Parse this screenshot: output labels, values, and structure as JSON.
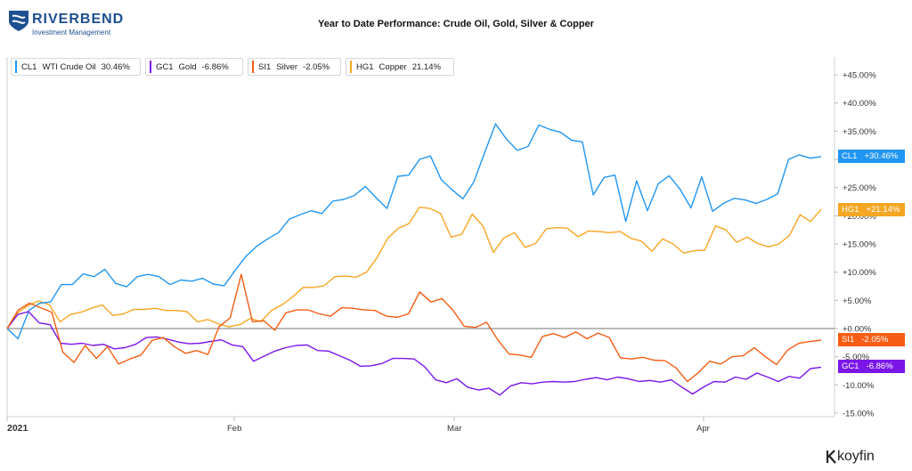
{
  "header": {
    "brand": "RIVERBEND",
    "brand_sub": "Investment Management",
    "title": "Year to Date Performance: Crude Oil, Gold, Silver & Copper"
  },
  "watermark": "koyfin",
  "colors": {
    "CL1": "#2196f3",
    "GC1": "#7b16e8",
    "SI1": "#f45d13",
    "HG1": "#f5a623",
    "brand": "#1d4f91"
  },
  "legend": [
    {
      "ticker": "CL1",
      "name": "WTI Crude Oil",
      "value": "30.46%"
    },
    {
      "ticker": "GC1",
      "name": "Gold",
      "value": "-6.86%"
    },
    {
      "ticker": "SI1",
      "name": "Silver",
      "value": "-2.05%"
    },
    {
      "ticker": "HG1",
      "name": "Copper",
      "value": "21.14%"
    }
  ],
  "tags": [
    {
      "ticker": "CL1",
      "value": "+30.46%"
    },
    {
      "ticker": "HG1",
      "value": "+21.14%"
    },
    {
      "ticker": "SI1",
      "value": "-2.05%"
    },
    {
      "ticker": "GC1",
      "value": "-6.86%"
    }
  ],
  "chart_data": {
    "type": "line",
    "title": "Year to Date Performance: Crude Oil, Gold, Silver & Copper",
    "x_tick_labels": [
      "2021",
      "Feb",
      "Mar",
      "Apr"
    ],
    "y_tick_labels": [
      "+45.00%",
      "+40.00%",
      "+35.00%",
      "+30.00%",
      "+25.00%",
      "+20.00%",
      "+15.00%",
      "+10.00%",
      "+5.00%",
      "+0.00%",
      "-5.00%",
      "-10.00%",
      "-15.00%"
    ],
    "ylim": [
      -15,
      45
    ],
    "y_unit": "%",
    "grid": false,
    "zero_line": true,
    "legend_position": "top-left",
    "series": [
      {
        "ticker": "CL1",
        "name": "WTI Crude Oil",
        "last": 30.46,
        "values": [
          0.0,
          -1.8,
          3.2,
          4.5,
          4.7,
          7.8,
          7.8,
          9.7,
          9.2,
          10.5,
          8.0,
          7.4,
          9.2,
          9.6,
          9.2,
          7.8,
          8.6,
          8.4,
          8.9,
          7.9,
          7.6,
          10.3,
          12.8,
          14.6,
          15.9,
          17.0,
          19.4,
          20.2,
          20.9,
          20.4,
          22.6,
          22.9,
          23.6,
          25.2,
          23.2,
          21.3,
          27.0,
          27.2,
          30.0,
          30.6,
          26.4,
          24.6,
          23.0,
          26.0,
          31.2,
          36.3,
          33.6,
          31.6,
          32.3,
          36.1,
          35.3,
          34.8,
          33.4,
          33.1,
          23.7,
          26.8,
          27.2,
          19.0,
          26.2,
          20.9,
          25.7,
          27.1,
          24.7,
          21.4,
          26.9,
          20.8,
          22.2,
          23.1,
          22.8,
          22.2,
          22.9,
          23.9,
          30.0,
          30.8,
          30.2,
          30.5
        ]
      },
      {
        "ticker": "GC1",
        "name": "Gold",
        "last": -6.86,
        "values": [
          0.0,
          2.5,
          3.0,
          1.0,
          0.7,
          -2.6,
          -2.8,
          -2.6,
          -3.0,
          -2.8,
          -3.6,
          -3.4,
          -2.8,
          -1.6,
          -1.5,
          -1.9,
          -2.4,
          -2.7,
          -2.6,
          -2.3,
          -2.0,
          -2.9,
          -3.2,
          -5.8,
          -4.9,
          -4.0,
          -3.4,
          -3.0,
          -2.9,
          -3.9,
          -4.0,
          -4.8,
          -5.6,
          -6.7,
          -6.6,
          -6.2,
          -5.3,
          -5.3,
          -5.4,
          -6.8,
          -9.1,
          -9.6,
          -8.9,
          -10.4,
          -10.9,
          -10.6,
          -11.8,
          -10.2,
          -9.6,
          -9.8,
          -9.5,
          -9.4,
          -9.5,
          -9.4,
          -9.0,
          -8.7,
          -9.1,
          -8.6,
          -8.9,
          -9.4,
          -9.2,
          -9.5,
          -9.1,
          -10.4,
          -11.6,
          -10.4,
          -9.4,
          -9.5,
          -8.6,
          -9.0,
          -7.9,
          -8.6,
          -9.4,
          -8.5,
          -8.8,
          -7.1,
          -6.86
        ]
      },
      {
        "ticker": "SI1",
        "name": "Silver",
        "last": -2.05,
        "values": [
          0.0,
          3.3,
          4.5,
          3.7,
          2.9,
          -4.2,
          -6.0,
          -3.0,
          -5.3,
          -3.2,
          -6.3,
          -5.4,
          -4.7,
          -2.1,
          -1.6,
          -3.2,
          -4.4,
          -3.9,
          -4.6,
          0.3,
          1.9,
          9.6,
          1.2,
          1.4,
          -0.3,
          2.8,
          3.3,
          3.3,
          2.6,
          2.2,
          3.7,
          3.6,
          3.3,
          3.2,
          2.2,
          2.0,
          2.6,
          6.5,
          4.7,
          5.3,
          3.2,
          0.4,
          0.2,
          1.1,
          -2.0,
          -4.5,
          -4.7,
          -5.1,
          -1.4,
          -0.9,
          -1.6,
          -0.6,
          -1.8,
          -0.8,
          -1.6,
          -5.2,
          -5.4,
          -5.1,
          -5.6,
          -5.7,
          -7.0,
          -9.4,
          -7.8,
          -5.8,
          -6.3,
          -5.0,
          -4.8,
          -3.4,
          -5.0,
          -6.4,
          -3.8,
          -2.6,
          -2.3,
          -2.05
        ]
      },
      {
        "ticker": "HG1",
        "name": "Copper",
        "last": 21.14,
        "values": [
          0.0,
          2.8,
          4.1,
          4.9,
          4.2,
          1.2,
          2.5,
          2.9,
          3.6,
          4.2,
          2.3,
          2.6,
          3.4,
          3.4,
          3.6,
          3.2,
          3.2,
          3.0,
          1.2,
          1.6,
          0.8,
          0.3,
          0.7,
          1.8,
          1.2,
          3.2,
          4.2,
          5.6,
          7.3,
          7.3,
          7.6,
          9.2,
          9.3,
          9.1,
          10.0,
          12.6,
          16.0,
          17.8,
          18.6,
          21.5,
          21.3,
          20.4,
          16.2,
          16.7,
          20.3,
          18.2,
          13.5,
          16.1,
          17.0,
          14.4,
          15.1,
          17.7,
          17.9,
          17.8,
          16.3,
          17.3,
          17.2,
          17.0,
          17.2,
          16.0,
          15.5,
          13.7,
          15.9,
          15.0,
          13.4,
          13.8,
          13.9,
          18.2,
          17.5,
          15.3,
          16.2,
          15.1,
          14.5,
          15.0,
          16.5,
          20.2,
          19.0,
          21.14
        ]
      }
    ]
  }
}
